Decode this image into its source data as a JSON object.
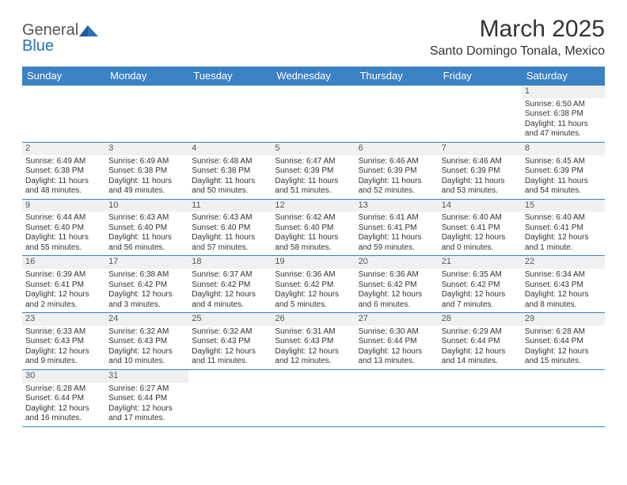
{
  "logo": {
    "text1": "General",
    "text2": "Blue"
  },
  "title": "March 2025",
  "subtitle": "Santo Domingo Tonala, Mexico",
  "colors": {
    "header_bg": "#3b82c4",
    "header_text": "#ffffff",
    "row_divider": "#3b82c4",
    "daynum_bg": "#eef0f2",
    "body_text": "#333333",
    "page_bg": "#ffffff"
  },
  "weekdays": [
    "Sunday",
    "Monday",
    "Tuesday",
    "Wednesday",
    "Thursday",
    "Friday",
    "Saturday"
  ],
  "weeks": [
    [
      null,
      null,
      null,
      null,
      null,
      null,
      {
        "n": "1",
        "sr": "Sunrise: 6:50 AM",
        "ss": "Sunset: 6:38 PM",
        "dl": "Daylight: 11 hours and 47 minutes."
      }
    ],
    [
      {
        "n": "2",
        "sr": "Sunrise: 6:49 AM",
        "ss": "Sunset: 6:38 PM",
        "dl": "Daylight: 11 hours and 48 minutes."
      },
      {
        "n": "3",
        "sr": "Sunrise: 6:49 AM",
        "ss": "Sunset: 6:38 PM",
        "dl": "Daylight: 11 hours and 49 minutes."
      },
      {
        "n": "4",
        "sr": "Sunrise: 6:48 AM",
        "ss": "Sunset: 6:38 PM",
        "dl": "Daylight: 11 hours and 50 minutes."
      },
      {
        "n": "5",
        "sr": "Sunrise: 6:47 AM",
        "ss": "Sunset: 6:39 PM",
        "dl": "Daylight: 11 hours and 51 minutes."
      },
      {
        "n": "6",
        "sr": "Sunrise: 6:46 AM",
        "ss": "Sunset: 6:39 PM",
        "dl": "Daylight: 11 hours and 52 minutes."
      },
      {
        "n": "7",
        "sr": "Sunrise: 6:46 AM",
        "ss": "Sunset: 6:39 PM",
        "dl": "Daylight: 11 hours and 53 minutes."
      },
      {
        "n": "8",
        "sr": "Sunrise: 6:45 AM",
        "ss": "Sunset: 6:39 PM",
        "dl": "Daylight: 11 hours and 54 minutes."
      }
    ],
    [
      {
        "n": "9",
        "sr": "Sunrise: 6:44 AM",
        "ss": "Sunset: 6:40 PM",
        "dl": "Daylight: 11 hours and 55 minutes."
      },
      {
        "n": "10",
        "sr": "Sunrise: 6:43 AM",
        "ss": "Sunset: 6:40 PM",
        "dl": "Daylight: 11 hours and 56 minutes."
      },
      {
        "n": "11",
        "sr": "Sunrise: 6:43 AM",
        "ss": "Sunset: 6:40 PM",
        "dl": "Daylight: 11 hours and 57 minutes."
      },
      {
        "n": "12",
        "sr": "Sunrise: 6:42 AM",
        "ss": "Sunset: 6:40 PM",
        "dl": "Daylight: 11 hours and 58 minutes."
      },
      {
        "n": "13",
        "sr": "Sunrise: 6:41 AM",
        "ss": "Sunset: 6:41 PM",
        "dl": "Daylight: 11 hours and 59 minutes."
      },
      {
        "n": "14",
        "sr": "Sunrise: 6:40 AM",
        "ss": "Sunset: 6:41 PM",
        "dl": "Daylight: 12 hours and 0 minutes."
      },
      {
        "n": "15",
        "sr": "Sunrise: 6:40 AM",
        "ss": "Sunset: 6:41 PM",
        "dl": "Daylight: 12 hours and 1 minute."
      }
    ],
    [
      {
        "n": "16",
        "sr": "Sunrise: 6:39 AM",
        "ss": "Sunset: 6:41 PM",
        "dl": "Daylight: 12 hours and 2 minutes."
      },
      {
        "n": "17",
        "sr": "Sunrise: 6:38 AM",
        "ss": "Sunset: 6:42 PM",
        "dl": "Daylight: 12 hours and 3 minutes."
      },
      {
        "n": "18",
        "sr": "Sunrise: 6:37 AM",
        "ss": "Sunset: 6:42 PM",
        "dl": "Daylight: 12 hours and 4 minutes."
      },
      {
        "n": "19",
        "sr": "Sunrise: 6:36 AM",
        "ss": "Sunset: 6:42 PM",
        "dl": "Daylight: 12 hours and 5 minutes."
      },
      {
        "n": "20",
        "sr": "Sunrise: 6:36 AM",
        "ss": "Sunset: 6:42 PM",
        "dl": "Daylight: 12 hours and 6 minutes."
      },
      {
        "n": "21",
        "sr": "Sunrise: 6:35 AM",
        "ss": "Sunset: 6:42 PM",
        "dl": "Daylight: 12 hours and 7 minutes."
      },
      {
        "n": "22",
        "sr": "Sunrise: 6:34 AM",
        "ss": "Sunset: 6:43 PM",
        "dl": "Daylight: 12 hours and 8 minutes."
      }
    ],
    [
      {
        "n": "23",
        "sr": "Sunrise: 6:33 AM",
        "ss": "Sunset: 6:43 PM",
        "dl": "Daylight: 12 hours and 9 minutes."
      },
      {
        "n": "24",
        "sr": "Sunrise: 6:32 AM",
        "ss": "Sunset: 6:43 PM",
        "dl": "Daylight: 12 hours and 10 minutes."
      },
      {
        "n": "25",
        "sr": "Sunrise: 6:32 AM",
        "ss": "Sunset: 6:43 PM",
        "dl": "Daylight: 12 hours and 11 minutes."
      },
      {
        "n": "26",
        "sr": "Sunrise: 6:31 AM",
        "ss": "Sunset: 6:43 PM",
        "dl": "Daylight: 12 hours and 12 minutes."
      },
      {
        "n": "27",
        "sr": "Sunrise: 6:30 AM",
        "ss": "Sunset: 6:44 PM",
        "dl": "Daylight: 12 hours and 13 minutes."
      },
      {
        "n": "28",
        "sr": "Sunrise: 6:29 AM",
        "ss": "Sunset: 6:44 PM",
        "dl": "Daylight: 12 hours and 14 minutes."
      },
      {
        "n": "29",
        "sr": "Sunrise: 6:28 AM",
        "ss": "Sunset: 6:44 PM",
        "dl": "Daylight: 12 hours and 15 minutes."
      }
    ],
    [
      {
        "n": "30",
        "sr": "Sunrise: 6:28 AM",
        "ss": "Sunset: 6:44 PM",
        "dl": "Daylight: 12 hours and 16 minutes."
      },
      {
        "n": "31",
        "sr": "Sunrise: 6:27 AM",
        "ss": "Sunset: 6:44 PM",
        "dl": "Daylight: 12 hours and 17 minutes."
      },
      null,
      null,
      null,
      null,
      null
    ]
  ]
}
